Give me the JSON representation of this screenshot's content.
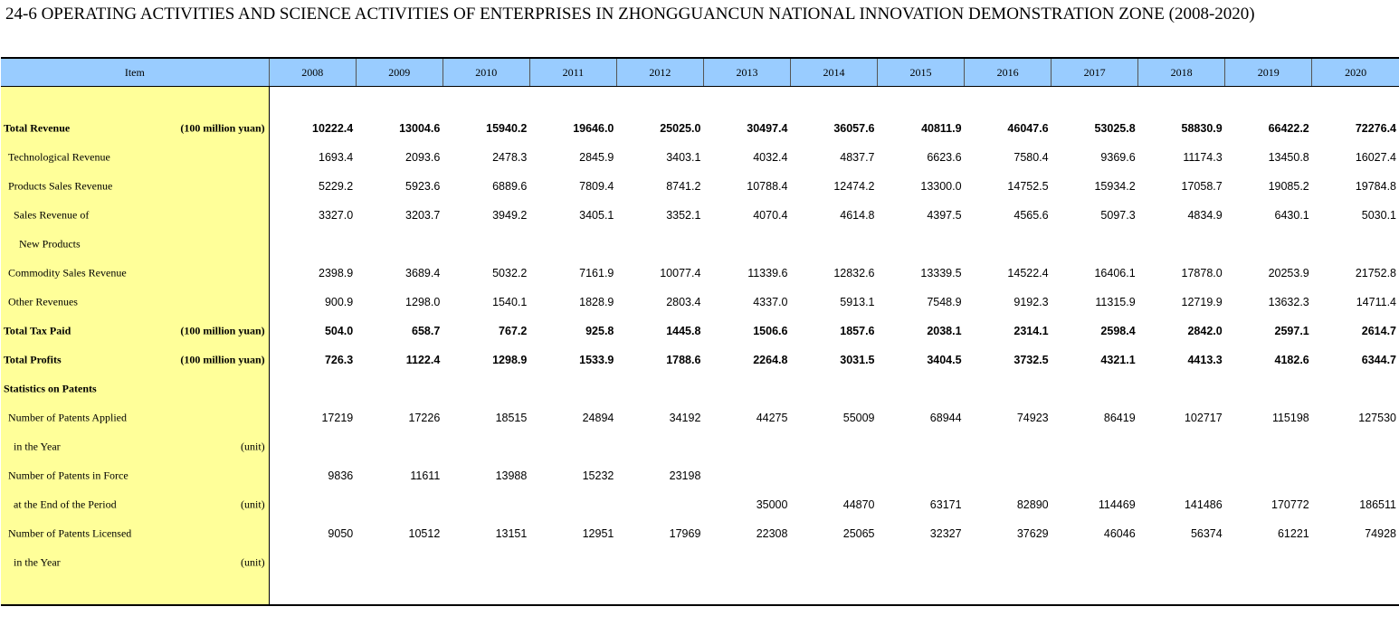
{
  "title": "24-6  OPERATING ACTIVITIES AND SCIENCE ACTIVITIES OF ENTERPRISES IN ZHONGGUANCUN NATIONAL INNOVATION DEMONSTRATION ZONE (2008-2020)",
  "header": {
    "item": "Item",
    "years": [
      "2008",
      "2009",
      "2010",
      "2011",
      "2012",
      "2013",
      "2014",
      "2015",
      "2016",
      "2017",
      "2018",
      "2019",
      "2020"
    ]
  },
  "rows": [
    {
      "label": "Total Revenue",
      "unit": "(100 million yuan)",
      "indent": 0,
      "bold": true,
      "values": [
        "10222.4",
        "13004.6",
        "15940.2",
        "19646.0",
        "25025.0",
        "30497.4",
        "36057.6",
        "40811.9",
        "46047.6",
        "53025.8",
        "58830.9",
        "66422.2",
        "72276.4"
      ]
    },
    {
      "label": "Technological Revenue",
      "unit": "",
      "indent": 1,
      "bold": false,
      "values": [
        "1693.4",
        "2093.6",
        "2478.3",
        "2845.9",
        "3403.1",
        "4032.4",
        "4837.7",
        "6623.6",
        "7580.4",
        "9369.6",
        "11174.3",
        "13450.8",
        "16027.4"
      ]
    },
    {
      "label": "Products Sales Revenue",
      "unit": "",
      "indent": 1,
      "bold": false,
      "values": [
        "5229.2",
        "5923.6",
        "6889.6",
        "7809.4",
        "8741.2",
        "10788.4",
        "12474.2",
        "13300.0",
        "14752.5",
        "15934.2",
        "17058.7",
        "19085.2",
        "19784.8"
      ]
    },
    {
      "label": "Sales Revenue of",
      "unit": "",
      "indent": 2,
      "bold": false,
      "values": [
        "3327.0",
        "3203.7",
        "3949.2",
        "3405.1",
        "3352.1",
        "4070.4",
        "4614.8",
        "4397.5",
        "4565.6",
        "5097.3",
        "4834.9",
        "6430.1",
        "5030.1"
      ]
    },
    {
      "label": "New Products",
      "unit": "",
      "indent": 3,
      "bold": false,
      "values": [
        "",
        "",
        "",
        "",
        "",
        "",
        "",
        "",
        "",
        "",
        "",
        "",
        ""
      ]
    },
    {
      "label": "Commodity Sales Revenue",
      "unit": "",
      "indent": 1,
      "bold": false,
      "values": [
        "2398.9",
        "3689.4",
        "5032.2",
        "7161.9",
        "10077.4",
        "11339.6",
        "12832.6",
        "13339.5",
        "14522.4",
        "16406.1",
        "17878.0",
        "20253.9",
        "21752.8"
      ]
    },
    {
      "label": "Other Revenues",
      "unit": "",
      "indent": 1,
      "bold": false,
      "values": [
        "900.9",
        "1298.0",
        "1540.1",
        "1828.9",
        "2803.4",
        "4337.0",
        "5913.1",
        "7548.9",
        "9192.3",
        "11315.9",
        "12719.9",
        "13632.3",
        "14711.4"
      ]
    },
    {
      "label": "Total Tax Paid",
      "unit": "(100 million yuan)",
      "indent": 0,
      "bold": true,
      "values": [
        "504.0",
        "658.7",
        "767.2",
        "925.8",
        "1445.8",
        "1506.6",
        "1857.6",
        "2038.1",
        "2314.1",
        "2598.4",
        "2842.0",
        "2597.1",
        "2614.7"
      ]
    },
    {
      "label": "Total Profits",
      "unit": "(100 million yuan)",
      "indent": 0,
      "bold": true,
      "values": [
        "726.3",
        "1122.4",
        "1298.9",
        "1533.9",
        "1788.6",
        "2264.8",
        "3031.5",
        "3404.5",
        "3732.5",
        "4321.1",
        "4413.3",
        "4182.6",
        "6344.7"
      ]
    },
    {
      "label": "Statistics on Patents",
      "unit": "",
      "indent": 0,
      "bold": true,
      "values": [
        "",
        "",
        "",
        "",
        "",
        "",
        "",
        "",
        "",
        "",
        "",
        "",
        ""
      ]
    },
    {
      "label": "Number of Patents Applied",
      "unit": "",
      "indent": 1,
      "bold": false,
      "values": [
        "17219",
        "17226",
        "18515",
        "24894",
        "34192",
        "44275",
        "55009",
        "68944",
        "74923",
        "86419",
        "102717",
        "115198",
        "127530"
      ]
    },
    {
      "label": "in the Year",
      "unit": "(unit)",
      "indent": 2,
      "bold": false,
      "values": [
        "",
        "",
        "",
        "",
        "",
        "",
        "",
        "",
        "",
        "",
        "",
        "",
        ""
      ]
    },
    {
      "label": "Number of Patents in Force",
      "unit": "",
      "indent": 1,
      "bold": false,
      "values": [
        "9836",
        "11611",
        "13988",
        "15232",
        "23198",
        "",
        "",
        "",
        "",
        "",
        "",
        "",
        ""
      ]
    },
    {
      "label": "at the End of the Period",
      "unit": "(unit)",
      "indent": 2,
      "bold": false,
      "values": [
        "",
        "",
        "",
        "",
        "",
        "35000",
        "44870",
        "63171",
        "82890",
        "114469",
        "141486",
        "170772",
        "186511"
      ]
    },
    {
      "label": "Number of Patents Licensed",
      "unit": "",
      "indent": 1,
      "bold": false,
      "values": [
        "9050",
        "10512",
        "13151",
        "12951",
        "17969",
        "22308",
        "25065",
        "32327",
        "37629",
        "46046",
        "56374",
        "61221",
        "74928"
      ]
    },
    {
      "label": "in the Year",
      "unit": "(unit)",
      "indent": 2,
      "bold": false,
      "values": [
        "",
        "",
        "",
        "",
        "",
        "",
        "",
        "",
        "",
        "",
        "",
        "",
        ""
      ]
    }
  ]
}
